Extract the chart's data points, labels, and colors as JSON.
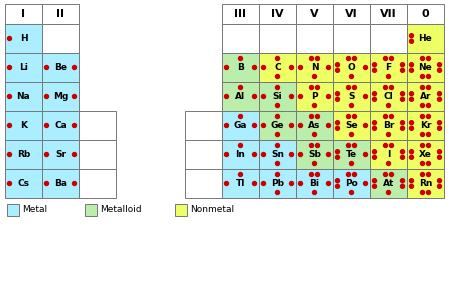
{
  "metal_color": "#aaeeff",
  "metalloid_color": "#bbeeaa",
  "nonmetal_color": "#eeff66",
  "white_color": "#ffffff",
  "border_color": "#777777",
  "dot_color": "#cc0000",
  "dot_counts": {
    "H": {
      "L": 1,
      "T": 0,
      "R": 0,
      "B": 0
    },
    "He": {
      "L": 2,
      "T": 0,
      "R": 0,
      "B": 0
    },
    "Li": {
      "L": 1,
      "T": 0,
      "R": 0,
      "B": 0
    },
    "Be": {
      "L": 1,
      "T": 0,
      "R": 1,
      "B": 0
    },
    "B": {
      "L": 1,
      "T": 1,
      "R": 1,
      "B": 0
    },
    "C": {
      "L": 1,
      "T": 1,
      "R": 1,
      "B": 1
    },
    "N": {
      "L": 1,
      "T": 2,
      "R": 1,
      "B": 1
    },
    "O": {
      "L": 2,
      "T": 2,
      "R": 1,
      "B": 1
    },
    "F": {
      "L": 2,
      "T": 2,
      "R": 2,
      "B": 1
    },
    "Ne": {
      "L": 2,
      "T": 2,
      "R": 2,
      "B": 2
    },
    "Na": {
      "L": 1,
      "T": 0,
      "R": 0,
      "B": 0
    },
    "Mg": {
      "L": 1,
      "T": 0,
      "R": 1,
      "B": 0
    },
    "Al": {
      "L": 1,
      "T": 1,
      "R": 1,
      "B": 0
    },
    "Si": {
      "L": 1,
      "T": 1,
      "R": 1,
      "B": 1
    },
    "P": {
      "L": 1,
      "T": 2,
      "R": 1,
      "B": 1
    },
    "S": {
      "L": 2,
      "T": 2,
      "R": 1,
      "B": 1
    },
    "Cl": {
      "L": 2,
      "T": 2,
      "R": 2,
      "B": 1
    },
    "Ar": {
      "L": 2,
      "T": 2,
      "R": 2,
      "B": 2
    },
    "K": {
      "L": 1,
      "T": 0,
      "R": 0,
      "B": 0
    },
    "Ca": {
      "L": 1,
      "T": 0,
      "R": 1,
      "B": 0
    },
    "Ga": {
      "L": 1,
      "T": 1,
      "R": 1,
      "B": 0
    },
    "Ge": {
      "L": 1,
      "T": 1,
      "R": 1,
      "B": 1
    },
    "As": {
      "L": 1,
      "T": 2,
      "R": 1,
      "B": 1
    },
    "Se": {
      "L": 2,
      "T": 2,
      "R": 1,
      "B": 1
    },
    "Br": {
      "L": 2,
      "T": 2,
      "R": 2,
      "B": 1
    },
    "Kr": {
      "L": 2,
      "T": 2,
      "R": 2,
      "B": 2
    },
    "Rb": {
      "L": 1,
      "T": 0,
      "R": 0,
      "B": 0
    },
    "Sr": {
      "L": 1,
      "T": 0,
      "R": 1,
      "B": 0
    },
    "In": {
      "L": 1,
      "T": 1,
      "R": 1,
      "B": 0
    },
    "Sn": {
      "L": 1,
      "T": 1,
      "R": 1,
      "B": 1
    },
    "Sb": {
      "L": 1,
      "T": 2,
      "R": 1,
      "B": 1
    },
    "Te": {
      "L": 2,
      "T": 2,
      "R": 1,
      "B": 1
    },
    "I": {
      "L": 2,
      "T": 2,
      "R": 2,
      "B": 1
    },
    "Xe": {
      "L": 2,
      "T": 2,
      "R": 2,
      "B": 2
    },
    "Cs": {
      "L": 1,
      "T": 0,
      "R": 0,
      "B": 0
    },
    "Ba": {
      "L": 1,
      "T": 0,
      "R": 1,
      "B": 0
    },
    "Tl": {
      "L": 1,
      "T": 1,
      "R": 1,
      "B": 0
    },
    "Pb": {
      "L": 1,
      "T": 1,
      "R": 1,
      "B": 1
    },
    "Bi": {
      "L": 1,
      "T": 2,
      "R": 1,
      "B": 1
    },
    "Po": {
      "L": 2,
      "T": 2,
      "R": 1,
      "B": 1
    },
    "At": {
      "L": 2,
      "T": 2,
      "R": 2,
      "B": 1
    },
    "Rn": {
      "L": 2,
      "T": 2,
      "R": 2,
      "B": 2
    }
  },
  "elements": [
    {
      "sym": "H",
      "row": 1,
      "col": 0,
      "type": "metal"
    },
    {
      "sym": "He",
      "row": 1,
      "col": 8,
      "type": "nonmetal"
    },
    {
      "sym": "Li",
      "row": 2,
      "col": 0,
      "type": "metal"
    },
    {
      "sym": "Be",
      "row": 2,
      "col": 1,
      "type": "metal"
    },
    {
      "sym": "B",
      "row": 2,
      "col": 3,
      "type": "metalloid"
    },
    {
      "sym": "C",
      "row": 2,
      "col": 4,
      "type": "nonmetal"
    },
    {
      "sym": "N",
      "row": 2,
      "col": 5,
      "type": "nonmetal"
    },
    {
      "sym": "O",
      "row": 2,
      "col": 6,
      "type": "nonmetal"
    },
    {
      "sym": "F",
      "row": 2,
      "col": 7,
      "type": "nonmetal"
    },
    {
      "sym": "Ne",
      "row": 2,
      "col": 8,
      "type": "nonmetal"
    },
    {
      "sym": "Na",
      "row": 3,
      "col": 0,
      "type": "metal"
    },
    {
      "sym": "Mg",
      "row": 3,
      "col": 1,
      "type": "metal"
    },
    {
      "sym": "Al",
      "row": 3,
      "col": 3,
      "type": "metalloid"
    },
    {
      "sym": "Si",
      "row": 3,
      "col": 4,
      "type": "metalloid"
    },
    {
      "sym": "P",
      "row": 3,
      "col": 5,
      "type": "nonmetal"
    },
    {
      "sym": "S",
      "row": 3,
      "col": 6,
      "type": "nonmetal"
    },
    {
      "sym": "Cl",
      "row": 3,
      "col": 7,
      "type": "nonmetal"
    },
    {
      "sym": "Ar",
      "row": 3,
      "col": 8,
      "type": "nonmetal"
    },
    {
      "sym": "K",
      "row": 4,
      "col": 0,
      "type": "metal"
    },
    {
      "sym": "Ca",
      "row": 4,
      "col": 1,
      "type": "metal"
    },
    {
      "sym": "Ga",
      "row": 4,
      "col": 3,
      "type": "metal"
    },
    {
      "sym": "Ge",
      "row": 4,
      "col": 4,
      "type": "metalloid"
    },
    {
      "sym": "As",
      "row": 4,
      "col": 5,
      "type": "metalloid"
    },
    {
      "sym": "Se",
      "row": 4,
      "col": 6,
      "type": "nonmetal"
    },
    {
      "sym": "Br",
      "row": 4,
      "col": 7,
      "type": "nonmetal"
    },
    {
      "sym": "Kr",
      "row": 4,
      "col": 8,
      "type": "nonmetal"
    },
    {
      "sym": "Rb",
      "row": 5,
      "col": 0,
      "type": "metal"
    },
    {
      "sym": "Sr",
      "row": 5,
      "col": 1,
      "type": "metal"
    },
    {
      "sym": "In",
      "row": 5,
      "col": 3,
      "type": "metal"
    },
    {
      "sym": "Sn",
      "row": 5,
      "col": 4,
      "type": "metal"
    },
    {
      "sym": "Sb",
      "row": 5,
      "col": 5,
      "type": "metalloid"
    },
    {
      "sym": "Te",
      "row": 5,
      "col": 6,
      "type": "metalloid"
    },
    {
      "sym": "I",
      "row": 5,
      "col": 7,
      "type": "nonmetal"
    },
    {
      "sym": "Xe",
      "row": 5,
      "col": 8,
      "type": "nonmetal"
    },
    {
      "sym": "Cs",
      "row": 6,
      "col": 0,
      "type": "metal"
    },
    {
      "sym": "Ba",
      "row": 6,
      "col": 1,
      "type": "metal"
    },
    {
      "sym": "Tl",
      "row": 6,
      "col": 3,
      "type": "metal"
    },
    {
      "sym": "Pb",
      "row": 6,
      "col": 4,
      "type": "metal"
    },
    {
      "sym": "Bi",
      "row": 6,
      "col": 5,
      "type": "metal"
    },
    {
      "sym": "Po",
      "row": 6,
      "col": 6,
      "type": "metal"
    },
    {
      "sym": "At",
      "row": 6,
      "col": 7,
      "type": "metalloid"
    },
    {
      "sym": "Rn",
      "row": 6,
      "col": 8,
      "type": "nonmetal"
    }
  ],
  "left_headers": [
    "I",
    "II"
  ],
  "right_headers": [
    "III",
    "IV",
    "V",
    "VI",
    "VII",
    "0"
  ],
  "legend": [
    {
      "label": "Metal",
      "color": "#aaeeff"
    },
    {
      "label": "Metalloid",
      "color": "#bbeeaa"
    },
    {
      "label": "Nonmetal",
      "color": "#eeff66"
    }
  ]
}
